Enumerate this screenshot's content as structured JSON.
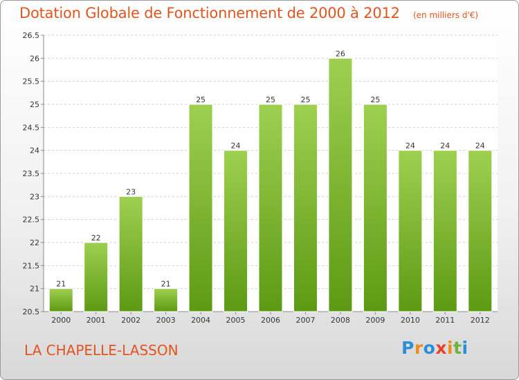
{
  "chart_data": {
    "type": "bar",
    "title": "Dotation Globale de Fonctionnement de 2000 à 2012",
    "unit_note": "(en milliers d'€)",
    "categories": [
      "2000",
      "2001",
      "2002",
      "2003",
      "2004",
      "2005",
      "2006",
      "2007",
      "2008",
      "2009",
      "2010",
      "2011",
      "2012"
    ],
    "values": [
      21,
      22,
      23,
      21,
      25,
      24,
      25,
      25,
      26,
      25,
      24,
      24,
      24
    ],
    "ylim": [
      20.5,
      26.5
    ],
    "yticks": [
      "20.5",
      "21",
      "21.5",
      "22",
      "22.5",
      "23",
      "23.5",
      "24",
      "24.5",
      "25",
      "25.5",
      "26",
      "26.5"
    ],
    "grid": true,
    "bar_color": "#8cc63f"
  },
  "footer": {
    "commune": "LA CHAPELLE-LASSON",
    "logo_letters": [
      "P",
      "r",
      "o",
      "x",
      "i",
      "t",
      "i"
    ],
    "logo_colors": [
      "#2a8fd6",
      "#f08a1c",
      "#2a8fd6",
      "#e8412b",
      "#f08a1c",
      "#6db33f",
      "#2a8fd6"
    ]
  }
}
